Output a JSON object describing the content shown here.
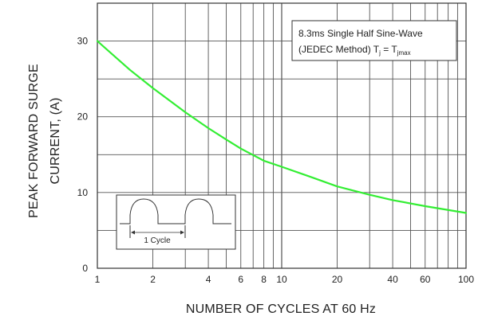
{
  "chart_data": {
    "type": "line",
    "x_scale": "log",
    "y_scale": "linear",
    "xlim": [
      1,
      100
    ],
    "ylim": [
      0,
      35
    ],
    "grid": true,
    "xlabel": "NUMBER OF CYCLES AT 60 Hz",
    "ylabel": [
      "PEAK FORWARD SURGE",
      "CURRENT, (A)"
    ],
    "x_ticks": [
      1,
      2,
      4,
      6,
      8,
      10,
      20,
      40,
      60,
      100
    ],
    "x_tick_labels": [
      "1",
      "2",
      "4",
      "6",
      "8",
      "10",
      "20",
      "40",
      "60",
      "100"
    ],
    "y_ticks": [
      0,
      10,
      20,
      30
    ],
    "y_tick_labels": [
      "0",
      "10",
      "20",
      "30"
    ],
    "series": [
      {
        "color": "#33ee33",
        "points": [
          [
            1,
            30
          ],
          [
            1.5,
            26.2
          ],
          [
            2,
            23.8
          ],
          [
            3,
            20.6
          ],
          [
            4,
            18.5
          ],
          [
            5,
            17
          ],
          [
            6,
            15.8
          ],
          [
            8,
            14.2
          ],
          [
            10,
            13.4
          ],
          [
            15,
            11.9
          ],
          [
            20,
            10.8
          ],
          [
            30,
            9.7
          ],
          [
            40,
            9.0
          ],
          [
            60,
            8.2
          ],
          [
            100,
            7.3
          ]
        ]
      }
    ],
    "annotation": {
      "line1": "8.3ms Single Half Sine-Wave",
      "line2_prefix": "(JEDEC Method) T",
      "line2_sub1": "j",
      "line2_mid": " = T",
      "line2_sub2": "jmax"
    },
    "inset": {
      "label": "1 Cycle"
    }
  }
}
